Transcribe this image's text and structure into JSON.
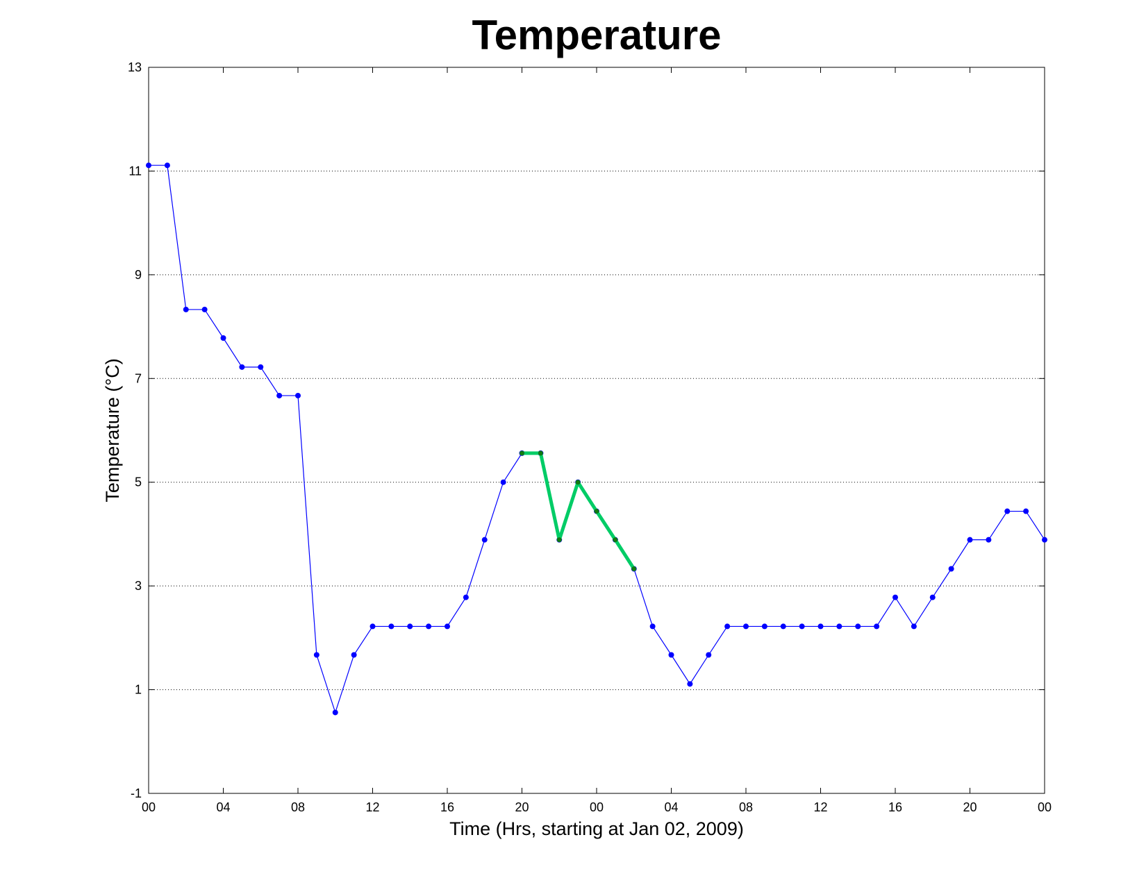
{
  "chart_data": {
    "type": "line",
    "title": "Temperature",
    "xlabel": "Time (Hrs, starting at Jan 02, 2009)",
    "ylabel": "Temperature (°C)",
    "xlim": [
      0,
      48
    ],
    "ylim": [
      -1,
      13
    ],
    "grid": "y-dotted",
    "x_ticks": [
      0,
      4,
      8,
      12,
      16,
      20,
      24,
      28,
      32,
      36,
      40,
      44,
      48
    ],
    "x_tick_labels": [
      "00",
      "04",
      "08",
      "12",
      "16",
      "20",
      "00",
      "04",
      "08",
      "12",
      "16",
      "20",
      "00"
    ],
    "y_ticks": [
      -1,
      1,
      3,
      5,
      7,
      9,
      11,
      13
    ],
    "y_tick_labels": [
      "-1",
      "1",
      "3",
      "5",
      "7",
      "9",
      "11",
      "13"
    ],
    "x": [
      0,
      1,
      2,
      3,
      4,
      5,
      6,
      7,
      8,
      9,
      10,
      11,
      12,
      13,
      14,
      15,
      16,
      17,
      18,
      19,
      20,
      21,
      22,
      23,
      24,
      25,
      26,
      27,
      28,
      29,
      30,
      31,
      32,
      33,
      34,
      35,
      36,
      37,
      38,
      39,
      40,
      41,
      42,
      43,
      44,
      45,
      46,
      47,
      48
    ],
    "series": [
      {
        "color": "#0000ff",
        "values": [
          11.11,
          11.11,
          8.33,
          8.33,
          7.78,
          7.22,
          7.22,
          6.67,
          6.67,
          1.67,
          0.56,
          1.67,
          2.22,
          2.22,
          2.22,
          2.22,
          2.22,
          2.78,
          3.89,
          5.0,
          5.56,
          5.56,
          3.89,
          5.0,
          4.44,
          3.89,
          3.33,
          2.22,
          1.67,
          1.11,
          1.67,
          2.22,
          2.22,
          2.22,
          2.22,
          2.22,
          2.22,
          2.22,
          2.22,
          2.22,
          2.78,
          2.22,
          2.78,
          3.33,
          3.89,
          3.89,
          4.44,
          4.44,
          3.89
        ]
      },
      {
        "color": "#00cc66",
        "marker_color": "#117a11",
        "x": [
          20,
          21,
          22,
          23,
          24,
          25,
          26
        ],
        "values": [
          5.56,
          5.56,
          3.89,
          5.0,
          4.44,
          3.89,
          3.33
        ]
      }
    ]
  }
}
